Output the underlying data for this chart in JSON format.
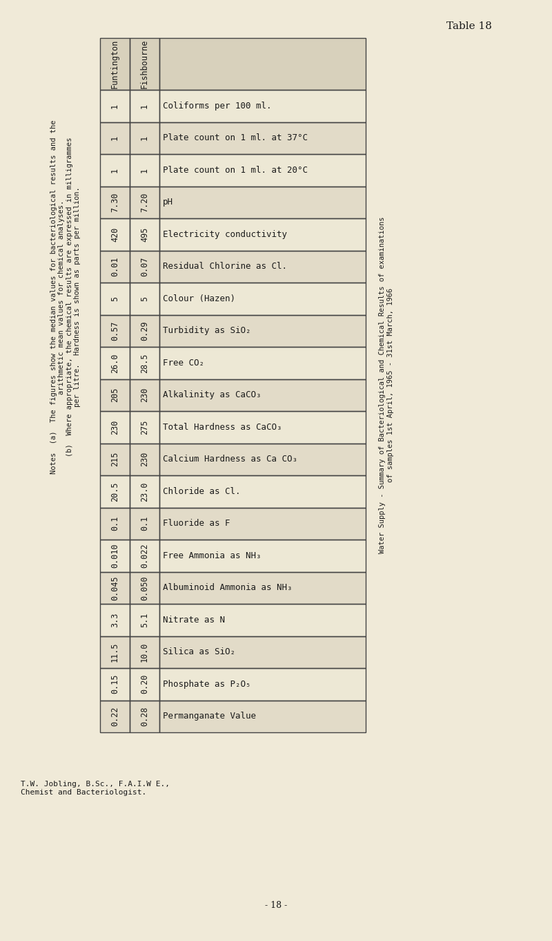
{
  "title": "Table 18",
  "subtitle_line1": "Water Supply - Summary of Bacteriological and Chemical Results of examinations",
  "subtitle_line2": "of samples 1st April, 1965 - 31st March, 1966",
  "col_headers": [
    "Funtington",
    "Fishbourne"
  ],
  "rows": [
    {
      "label": "Coliforms per 100 ml.",
      "fishbourne": "1",
      "funtington": "1"
    },
    {
      "label": "Plate count on 1 ml. at 37°C",
      "fishbourne": "1",
      "funtington": "1"
    },
    {
      "label": "Plate count on 1 ml. at 20°C",
      "fishbourne": "1",
      "funtington": "1"
    },
    {
      "label": "pH",
      "fishbourne": "7.20",
      "funtington": "7.30"
    },
    {
      "label": "Electricity conductivity",
      "fishbourne": "495",
      "funtington": "420"
    },
    {
      "label": "Residual Chlorine as Cl.",
      "fishbourne": "0.07",
      "funtington": "0.01"
    },
    {
      "label": "Colour (Hazen)",
      "fishbourne": "5",
      "funtington": "5"
    },
    {
      "label": "Turbidity as SiO₂",
      "fishbourne": "0.29",
      "funtington": "0.57"
    },
    {
      "label": "Free CO₂",
      "fishbourne": "28.5",
      "funtington": "26.0"
    },
    {
      "label": "Alkalinity as CaCO₃",
      "fishbourne": "230",
      "funtington": "205"
    },
    {
      "label": "Total Hardness as CaCO₃",
      "fishbourne": "275",
      "funtington": "230"
    },
    {
      "label": "Calcium Hardness as Ca CO₃",
      "fishbourne": "230",
      "funtington": "215"
    },
    {
      "label": "Chloride as Cl.",
      "fishbourne": "23.0",
      "funtington": "20.5"
    },
    {
      "label": "Fluoride as F",
      "fishbourne": "0.1",
      "funtington": "0.1"
    },
    {
      "label": "Free Ammonia as NH₃",
      "fishbourne": "0.022",
      "funtington": "0.010"
    },
    {
      "label": "Albuminoid Ammonia as NH₃",
      "fishbourne": "0.050",
      "funtington": "0.045"
    },
    {
      "label": "Nitrate as N",
      "fishbourne": "5.1",
      "funtington": "3.3"
    },
    {
      "label": "Silica as SiO₂",
      "fishbourne": "10.0",
      "funtington": "11.5"
    },
    {
      "label": "Phosphate as P₂O₅",
      "fishbourne": "0.20",
      "funtington": "0.15"
    },
    {
      "label": "Permanganate Value",
      "fishbourne": "0.28",
      "funtington": "0.22"
    }
  ],
  "notes_line1": "Notes  (a)  The figures show the median values for bacteriological results and the",
  "notes_line2": "arithmetic mean values for chemical analyses.",
  "notes_line3": "(b)  Where appropriate, the chemical results are expressed in milligrammes",
  "notes_line4": "per litre.  Hardness is shown as parts per million.",
  "footer": "T.W. Jobling, B.Sc., F.A.I.W E.,\nChemist and Bacteriologist.",
  "page_num": "- 18 -",
  "bg_color": "#f0ead8",
  "row_light": "#ede8d5",
  "row_dark": "#e2dbc8",
  "header_bg": "#d8d1bc",
  "border_color": "#444444",
  "text_color": "#1a1a1a"
}
